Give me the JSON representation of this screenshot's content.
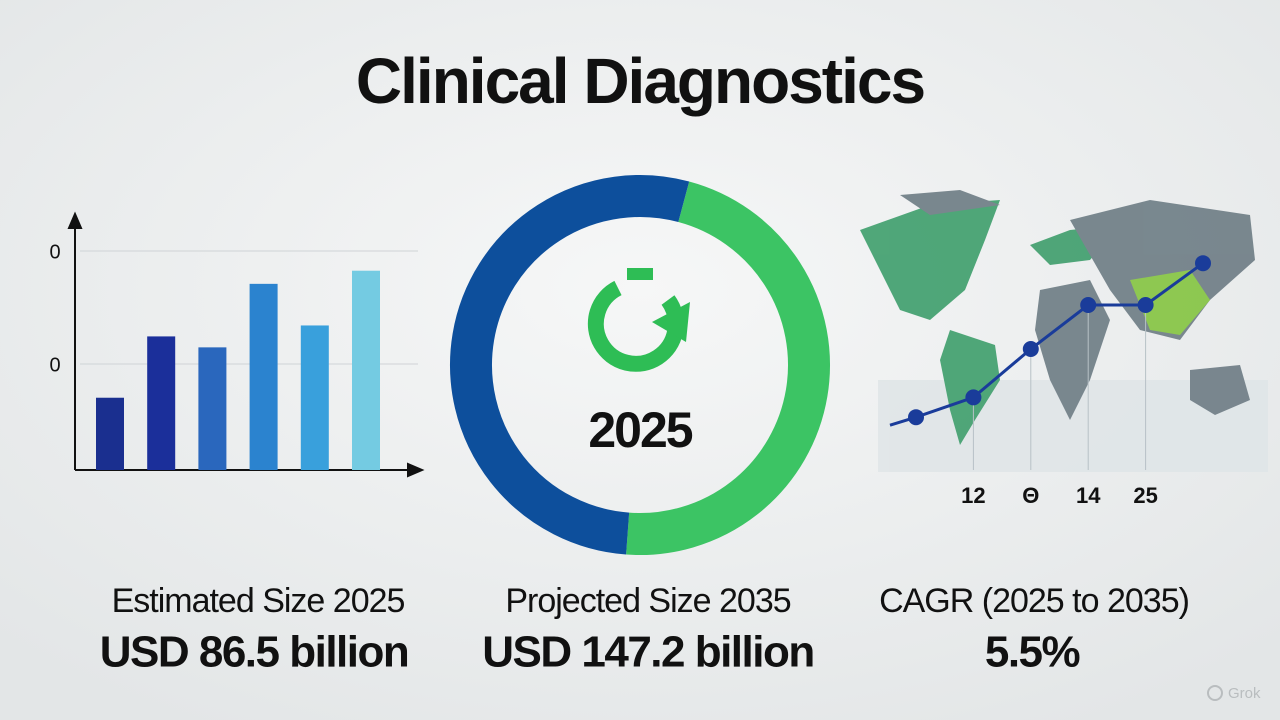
{
  "title": "Clinical Diagnostics",
  "chart_data": [
    {
      "type": "bar",
      "categories": [
        null,
        null,
        null,
        null,
        null,
        null
      ],
      "values": [
        33,
        61,
        56,
        85,
        66,
        91
      ],
      "colors": [
        "#1a2f8f",
        "#1b2f9a",
        "#2a67bd",
        "#2b83cf",
        "#39a0dc",
        "#74cbe2"
      ],
      "axis_labels": [
        "0",
        "0"
      ],
      "ylim": [
        0,
        100
      ]
    },
    {
      "type": "donut",
      "center_label": "2025",
      "values": [
        47,
        53
      ],
      "colors": [
        "#3cc464",
        "#0d4f9c"
      ]
    },
    {
      "type": "line",
      "categories": [
        null,
        "12",
        "Θ",
        "14",
        "25",
        null
      ],
      "values": [
        24,
        33,
        55,
        75,
        75,
        94
      ],
      "color": "#1a3c9a",
      "ylim": [
        0,
        100
      ]
    }
  ],
  "stats": [
    {
      "label": "Estimated Size 2025",
      "value": "USD 86.5 billion"
    },
    {
      "label": "Projected Size 2035",
      "value": "USD 147.2 billion"
    },
    {
      "label": "CAGR (2025 to 2035)",
      "value": "5.5%"
    }
  ],
  "watermark": "Grok"
}
